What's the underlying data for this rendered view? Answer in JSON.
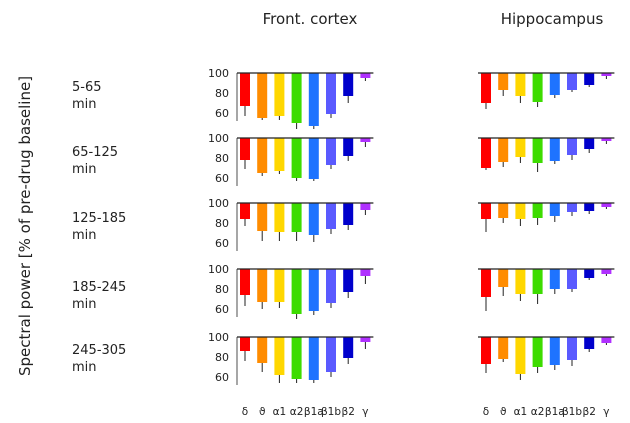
{
  "chart_data": {
    "type": "bar",
    "ylabel": "Spectral power [% of pre-drug baseline]",
    "yticks": [
      100,
      80,
      60
    ],
    "ylim": [
      45,
      100
    ],
    "categories": [
      "δ",
      "ϑ",
      "α1",
      "α2",
      "β1a",
      "β1b",
      "β2",
      "γ"
    ],
    "colors": [
      "#ff0000",
      "#ff8c00",
      "#ffd700",
      "#3ddc00",
      "#1e73ff",
      "#5a5aff",
      "#0000cc",
      "#b030ff"
    ],
    "panels": [
      {
        "name": "Front. cortex",
        "rows": [
          {
            "label": [
              "5-65",
              "min"
            ],
            "values": [
              67,
              55,
              57,
              50,
              47,
              59,
              77,
              95
            ],
            "err": [
              10,
              2,
              4,
              6,
              3,
              4,
              7,
              3
            ]
          },
          {
            "label": [
              "65-125",
              "min"
            ],
            "values": [
              78,
              65,
              67,
              60,
              59,
              73,
              82,
              96
            ],
            "err": [
              9,
              3,
              3,
              3,
              2,
              4,
              5,
              5
            ]
          },
          {
            "label": [
              "125-185",
              "min"
            ],
            "values": [
              84,
              72,
              71,
              71,
              68,
              74,
              78,
              93
            ],
            "err": [
              7,
              10,
              9,
              9,
              7,
              5,
              5,
              5
            ]
          },
          {
            "label": [
              "185-245",
              "min"
            ],
            "values": [
              74,
              67,
              67,
              55,
              58,
              66,
              77,
              93
            ],
            "err": [
              11,
              7,
              6,
              5,
              4,
              5,
              6,
              8
            ]
          },
          {
            "label": [
              "245-305",
              "min"
            ],
            "values": [
              86,
              74,
              62,
              58,
              57,
              65,
              79,
              95
            ],
            "err": [
              10,
              9,
              8,
              4,
              3,
              5,
              6,
              7
            ]
          }
        ]
      },
      {
        "name": "Hippocampus",
        "rows": [
          {
            "label": [
              "5-65",
              "min"
            ],
            "values": [
              70,
              83,
              77,
              71,
              78,
              83,
              88,
              97
            ],
            "err": [
              6,
              6,
              7,
              5,
              3,
              2,
              2,
              3
            ]
          },
          {
            "label": [
              "65-125",
              "min"
            ],
            "values": [
              70,
              76,
              81,
              75,
              77,
              83,
              89,
              97
            ],
            "err": [
              2,
              5,
              6,
              9,
              3,
              5,
              4,
              3
            ]
          },
          {
            "label": [
              "125-185",
              "min"
            ],
            "values": [
              84,
              85,
              84,
              85,
              87,
              91,
              92,
              96
            ],
            "err": [
              13,
              5,
              7,
              7,
              6,
              4,
              3,
              2
            ]
          },
          {
            "label": [
              "185-245",
              "min"
            ],
            "values": [
              72,
              82,
              75,
              75,
              80,
              80,
              91,
              95
            ],
            "err": [
              14,
              9,
              7,
              10,
              5,
              3,
              2,
              2
            ]
          },
          {
            "label": [
              "245-305",
              "min"
            ],
            "values": [
              73,
              78,
              63,
              70,
              72,
              77,
              88,
              94
            ],
            "err": [
              9,
              3,
              6,
              6,
              5,
              6,
              3,
              2
            ]
          }
        ]
      }
    ]
  }
}
